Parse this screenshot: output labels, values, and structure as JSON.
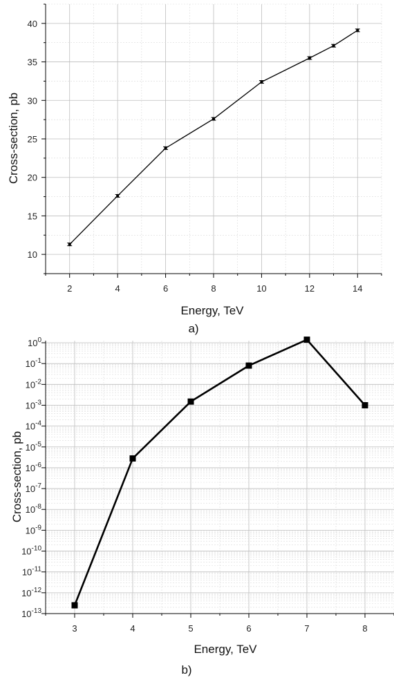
{
  "chart_data": [
    {
      "type": "line",
      "panel_label": "a)",
      "xlabel": "Energy, TeV",
      "ylabel": "Cross-section, pb",
      "xlim": [
        1,
        15
      ],
      "ylim": [
        7.5,
        42.5
      ],
      "x_ticks": [
        "2",
        "4",
        "6",
        "8",
        "10",
        "12",
        "14"
      ],
      "y_ticks": [
        "10",
        "15",
        "20",
        "25",
        "30",
        "35",
        "40"
      ],
      "grid": true,
      "series": [
        {
          "x": [
            2,
            4,
            6,
            8,
            10,
            12,
            13,
            14
          ],
          "values": [
            11.3,
            17.6,
            23.8,
            27.6,
            32.4,
            35.5,
            37.1,
            39.1
          ]
        }
      ]
    },
    {
      "type": "line",
      "panel_label": "b)",
      "xlabel": "Energy, TeV",
      "ylabel": "Cross-section, pb",
      "xlim": [
        2.5,
        8.5
      ],
      "ylim_log10": [
        -13,
        0.1
      ],
      "y_scale": "log",
      "x_ticks": [
        "3",
        "4",
        "5",
        "6",
        "7",
        "8"
      ],
      "y_tick_exponents": [
        "0",
        "-1",
        "-2",
        "-3",
        "-4",
        "-5",
        "-6",
        "-7",
        "-8",
        "-9",
        "-10",
        "-11",
        "-12",
        "-13"
      ],
      "y_tick_base": "10",
      "grid": true,
      "series": [
        {
          "x": [
            3,
            4,
            5,
            6,
            7,
            8
          ],
          "values": [
            2.5e-13,
            2.8e-06,
            0.0015,
            0.08,
            1.4,
            0.001
          ]
        }
      ]
    }
  ]
}
